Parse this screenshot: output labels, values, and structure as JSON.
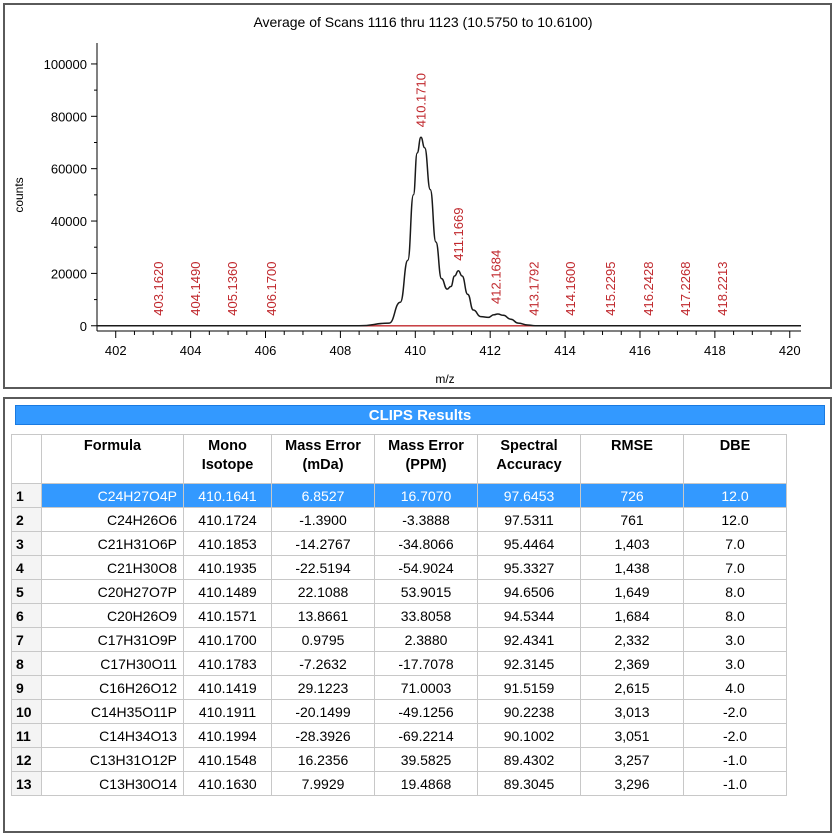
{
  "chart_data": {
    "type": "line",
    "title": "Average of Scans 1116 thru 1123 (10.5750 to 10.6100)",
    "xlabel": "m/z",
    "ylabel": "counts",
    "xlim": [
      401.5,
      420.3
    ],
    "ylim": [
      -2000,
      108000
    ],
    "xticks": [
      402,
      404,
      406,
      408,
      410,
      412,
      414,
      416,
      418,
      420
    ],
    "yticks": [
      0,
      20000,
      40000,
      60000,
      80000,
      100000
    ],
    "ytick_labels": [
      "0",
      "20000",
      "40000",
      "60000",
      "80000",
      "100000"
    ],
    "spectrum": {
      "name": "profile",
      "color": "#1a1a1a",
      "x": [
        401.5,
        408.5,
        409.3,
        409.6,
        409.8,
        409.95,
        410.05,
        410.15,
        410.25,
        410.4,
        410.55,
        410.7,
        410.85,
        410.95,
        411.05,
        411.15,
        411.25,
        411.4,
        411.55,
        411.75,
        411.95,
        412.1,
        412.2,
        412.35,
        412.55,
        412.75,
        413.0,
        413.2,
        420.3
      ],
      "y": [
        0,
        0,
        1000,
        9000,
        25000,
        50000,
        66000,
        72000,
        68000,
        52000,
        32000,
        18000,
        14000,
        15000,
        19000,
        21000,
        19000,
        12000,
        6000,
        3500,
        3200,
        4200,
        4500,
        4000,
        2500,
        1000,
        300,
        0,
        0
      ]
    },
    "baseline_color": "#c0282d",
    "peak_labels": [
      {
        "label": "403.1620",
        "mz": 403.162,
        "counts": 0
      },
      {
        "label": "404.1490",
        "mz": 404.149,
        "counts": 0
      },
      {
        "label": "405.1360",
        "mz": 405.136,
        "counts": 0
      },
      {
        "label": "406.1700",
        "mz": 406.17,
        "counts": 0
      },
      {
        "label": "410.1710",
        "mz": 410.171,
        "counts": 72000
      },
      {
        "label": "411.1669",
        "mz": 411.1669,
        "counts": 21000
      },
      {
        "label": "412.1684",
        "mz": 412.1684,
        "counts": 4500
      },
      {
        "label": "413.1792",
        "mz": 413.1792,
        "counts": 0
      },
      {
        "label": "414.1600",
        "mz": 414.16,
        "counts": 0
      },
      {
        "label": "415.2295",
        "mz": 415.2295,
        "counts": 0
      },
      {
        "label": "416.2428",
        "mz": 416.2428,
        "counts": 0
      },
      {
        "label": "417.2268",
        "mz": 417.2268,
        "counts": 0
      },
      {
        "label": "418.2213",
        "mz": 418.2213,
        "counts": 0
      }
    ],
    "label_color": "#c0282d"
  },
  "results": {
    "header": "CLIPS Results",
    "columns": [
      [
        "Formula"
      ],
      [
        "Mono",
        "Isotope"
      ],
      [
        "Mass Error",
        "(mDa)"
      ],
      [
        "Mass Error",
        "(PPM)"
      ],
      [
        "Spectral",
        "Accuracy"
      ],
      [
        "RMSE"
      ],
      [
        "DBE"
      ]
    ],
    "selected_row": 0,
    "rows": [
      [
        "1",
        "C24H27O4P",
        "410.1641",
        "6.8527",
        "16.7070",
        "97.6453",
        "726",
        "12.0"
      ],
      [
        "2",
        "C24H26O6",
        "410.1724",
        "-1.3900",
        "-3.3888",
        "97.5311",
        "761",
        "12.0"
      ],
      [
        "3",
        "C21H31O6P",
        "410.1853",
        "-14.2767",
        "-34.8066",
        "95.4464",
        "1,403",
        "7.0"
      ],
      [
        "4",
        "C21H30O8",
        "410.1935",
        "-22.5194",
        "-54.9024",
        "95.3327",
        "1,438",
        "7.0"
      ],
      [
        "5",
        "C20H27O7P",
        "410.1489",
        "22.1088",
        "53.9015",
        "94.6506",
        "1,649",
        "8.0"
      ],
      [
        "6",
        "C20H26O9",
        "410.1571",
        "13.8661",
        "33.8058",
        "94.5344",
        "1,684",
        "8.0"
      ],
      [
        "7",
        "C17H31O9P",
        "410.1700",
        "0.9795",
        "2.3880",
        "92.4341",
        "2,332",
        "3.0"
      ],
      [
        "8",
        "C17H30O11",
        "410.1783",
        "-7.2632",
        "-17.7078",
        "92.3145",
        "2,369",
        "3.0"
      ],
      [
        "9",
        "C16H26O12",
        "410.1419",
        "29.1223",
        "71.0003",
        "91.5159",
        "2,615",
        "4.0"
      ],
      [
        "10",
        "C14H35O11P",
        "410.1911",
        "-20.1499",
        "-49.1256",
        "90.2238",
        "3,013",
        "-2.0"
      ],
      [
        "11",
        "C14H34O13",
        "410.1994",
        "-28.3926",
        "-69.2214",
        "90.1002",
        "3,051",
        "-2.0"
      ],
      [
        "12",
        "C13H31O12P",
        "410.1548",
        "16.2356",
        "39.5825",
        "89.4302",
        "3,257",
        "-1.0"
      ],
      [
        "13",
        "C13H30O14",
        "410.1630",
        "7.9929",
        "19.4868",
        "89.3045",
        "3,296",
        "-1.0"
      ]
    ]
  }
}
